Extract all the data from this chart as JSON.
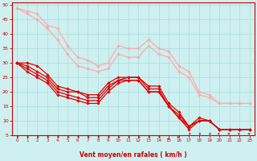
{
  "xlabel": "Vent moyen/en rafales ( km/h )",
  "xlim": [
    -0.5,
    23.5
  ],
  "ylim": [
    5,
    51
  ],
  "yticks": [
    5,
    10,
    15,
    20,
    25,
    30,
    35,
    40,
    45,
    50
  ],
  "xticks": [
    0,
    1,
    2,
    3,
    4,
    5,
    6,
    7,
    8,
    9,
    10,
    11,
    12,
    13,
    14,
    15,
    16,
    17,
    18,
    19,
    20,
    21,
    22,
    23
  ],
  "background_color": "#cef0f0",
  "grid_color": "#aadddd",
  "series": [
    {
      "x": [
        0,
        1,
        2,
        3,
        4,
        5,
        6,
        7,
        8,
        9,
        10,
        11,
        12,
        13,
        14,
        15,
        16,
        17,
        18,
        19,
        20,
        21,
        22,
        23
      ],
      "y": [
        49,
        48,
        47,
        43,
        42,
        36,
        32,
        31,
        29,
        30,
        36,
        35,
        35,
        38,
        35,
        34,
        29,
        27,
        20,
        19,
        16,
        16,
        16,
        16
      ],
      "color": "#ffaaaa",
      "lw": 0.9,
      "marker": "D",
      "ms": 1.8
    },
    {
      "x": [
        0,
        1,
        2,
        3,
        4,
        5,
        6,
        7,
        8,
        9,
        10,
        11,
        12,
        13,
        14,
        15,
        16,
        17,
        18,
        19,
        20,
        21,
        22,
        23
      ],
      "y": [
        49,
        47,
        45,
        42,
        38,
        33,
        29,
        28,
        27,
        28,
        33,
        32,
        32,
        36,
        33,
        32,
        27,
        25,
        19,
        18,
        16,
        16,
        16,
        16
      ],
      "color": "#ffaaaa",
      "lw": 0.9,
      "marker": "D",
      "ms": 1.8
    },
    {
      "x": [
        0,
        1,
        2,
        3,
        4,
        5,
        6,
        7,
        8,
        9,
        10,
        11,
        12,
        13,
        14,
        15,
        16,
        17,
        18,
        19,
        20,
        21,
        22,
        23
      ],
      "y": [
        30,
        30,
        29,
        26,
        22,
        21,
        20,
        19,
        19,
        23,
        25,
        25,
        25,
        22,
        22,
        16,
        13,
        8,
        11,
        10,
        7,
        7,
        7,
        7
      ],
      "color": "#dd0000",
      "lw": 0.9,
      "marker": "D",
      "ms": 1.8
    },
    {
      "x": [
        0,
        1,
        2,
        3,
        4,
        5,
        6,
        7,
        8,
        9,
        10,
        11,
        12,
        13,
        14,
        15,
        16,
        17,
        18,
        19,
        20,
        21,
        22,
        23
      ],
      "y": [
        30,
        29,
        27,
        25,
        21,
        20,
        20,
        18,
        18,
        22,
        24,
        25,
        25,
        21,
        21,
        15,
        12,
        8,
        10,
        10,
        7,
        7,
        7,
        7
      ],
      "color": "#dd0000",
      "lw": 0.9,
      "marker": "D",
      "ms": 1.8
    },
    {
      "x": [
        0,
        1,
        2,
        3,
        4,
        5,
        6,
        7,
        8,
        9,
        10,
        11,
        12,
        13,
        14,
        15,
        16,
        17,
        18,
        19,
        20,
        21,
        22,
        23
      ],
      "y": [
        30,
        28,
        26,
        24,
        20,
        19,
        18,
        17,
        17,
        21,
        24,
        24,
        24,
        20,
        20,
        15,
        11,
        8,
        10,
        10,
        7,
        7,
        7,
        7
      ],
      "color": "#dd0000",
      "lw": 0.9,
      "marker": "D",
      "ms": 1.8
    },
    {
      "x": [
        0,
        1,
        2,
        3,
        4,
        5,
        6,
        7,
        8,
        9,
        10,
        11,
        12,
        13,
        14,
        15,
        16,
        17,
        18,
        19,
        20,
        21,
        22,
        23
      ],
      "y": [
        30,
        27,
        25,
        23,
        19,
        18,
        17,
        16,
        16,
        20,
        23,
        24,
        24,
        20,
        20,
        15,
        11,
        7,
        10,
        10,
        7,
        7,
        7,
        7
      ],
      "color": "#dd0000",
      "lw": 0.9,
      "marker": "D",
      "ms": 1.8
    }
  ],
  "arrow_angles": [
    45,
    45,
    45,
    45,
    45,
    45,
    45,
    45,
    45,
    45,
    45,
    45,
    45,
    45,
    45,
    90,
    135,
    315,
    315,
    315,
    225,
    225,
    225,
    225
  ]
}
